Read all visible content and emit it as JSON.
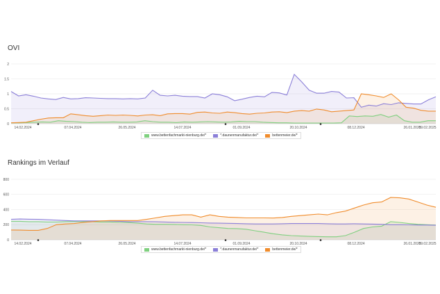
{
  "sections": [
    {
      "title": "OVI"
    },
    {
      "title": "Rankings im Verlauf"
    }
  ],
  "series_meta": [
    {
      "name": "www.bettenfachmarkt-nienburg.de/*",
      "color": "#7fd07f"
    },
    {
      "name": "*.daunenmanufaktur.de/*",
      "color": "#8b7fd8"
    },
    {
      "name": "bettenmeier.de/*",
      "color": "#f08c2c"
    }
  ],
  "chart_data": [
    {
      "type": "area",
      "title": "OVI",
      "x_ticks": [
        "14.02.2024",
        "07.04.2024",
        "26.05.2024",
        "14.07.2024",
        "01.09.2024",
        "20.10.2024",
        "08.12.2024",
        "26.01.2025",
        "09.02.2025"
      ],
      "y_ticks": [
        "0",
        "0.5",
        "1",
        "1.5",
        "2"
      ],
      "ylim": [
        0,
        2
      ],
      "grid": true,
      "legend": "bottom",
      "series": [
        {
          "name": "www.bettenfachmarkt-nienburg.de/*",
          "values": [
            0.03,
            0.03,
            0.04,
            0.05,
            0.06,
            0.05,
            0.1,
            0.08,
            0.07,
            0.05,
            0.04,
            0.05,
            0.05,
            0.06,
            0.05,
            0.05,
            0.06,
            0.1,
            0.07,
            0.05,
            0.05,
            0.04,
            0.06,
            0.05,
            0.06,
            0.07,
            0.06,
            0.05,
            0.06,
            0.08,
            0.07,
            0.07,
            0.05,
            0.04,
            0.03,
            0.03,
            0.02,
            0.02,
            0.02,
            0.02,
            0.02,
            0.02,
            0.03,
            0.26,
            0.24,
            0.26,
            0.25,
            0.31,
            0.22,
            0.29,
            0.1,
            0.05,
            0.05,
            0.1,
            0.1
          ]
        },
        {
          "name": "*.daunenmanufaktur.de/*",
          "values": [
            1.08,
            0.93,
            0.97,
            0.92,
            0.86,
            0.83,
            0.81,
            0.88,
            0.83,
            0.84,
            0.87,
            0.86,
            0.85,
            0.84,
            0.84,
            0.83,
            0.84,
            0.83,
            0.86,
            1.12,
            0.95,
            0.93,
            0.95,
            0.92,
            0.91,
            0.91,
            0.86,
            1.0,
            0.97,
            0.9,
            0.77,
            0.82,
            0.88,
            0.92,
            0.9,
            1.05,
            1.03,
            0.96,
            1.65,
            1.4,
            1.12,
            1.02,
            1.02,
            1.08,
            1.06,
            0.86,
            0.87,
            0.55,
            0.62,
            0.59,
            0.67,
            0.64,
            0.7,
            0.68,
            0.66,
            0.66,
            0.8,
            0.9
          ]
        },
        {
          "name": "bettenmeier.de/*",
          "values": [
            0.03,
            0.04,
            0.05,
            0.1,
            0.15,
            0.19,
            0.2,
            0.2,
            0.33,
            0.3,
            0.27,
            0.25,
            0.27,
            0.29,
            0.28,
            0.29,
            0.28,
            0.26,
            0.29,
            0.3,
            0.27,
            0.33,
            0.34,
            0.34,
            0.32,
            0.38,
            0.39,
            0.36,
            0.35,
            0.39,
            0.37,
            0.34,
            0.32,
            0.35,
            0.36,
            0.39,
            0.4,
            0.37,
            0.42,
            0.44,
            0.42,
            0.49,
            0.46,
            0.4,
            0.42,
            0.44,
            0.46,
            1.0,
            0.97,
            0.93,
            0.88,
            1.0,
            0.8,
            0.55,
            0.52,
            0.45,
            0.42,
            0.42
          ]
        }
      ]
    },
    {
      "type": "area",
      "title": "Rankings im Verlauf",
      "x_ticks": [
        "14.02.2024",
        "07.04.2024",
        "26.05.2024",
        "14.07.2024",
        "01.09.2024",
        "20.10.2024",
        "08.12.2024",
        "26.01.2025",
        "09.02.2025"
      ],
      "y_ticks": [
        "0",
        "200",
        "400",
        "600",
        "800"
      ],
      "ylim": [
        0,
        800
      ],
      "grid": true,
      "legend": "bottom",
      "series": [
        {
          "name": "www.bettenfachmarkt-nienburg.de/*",
          "values": [
            245,
            245,
            240,
            240,
            235,
            235,
            240,
            242,
            240,
            240,
            235,
            235,
            230,
            228,
            220,
            210,
            205,
            205,
            203,
            200,
            198,
            190,
            170,
            160,
            150,
            148,
            140,
            120,
            100,
            80,
            65,
            55,
            50,
            45,
            42,
            40,
            40,
            55,
            100,
            150,
            170,
            180,
            240,
            230,
            215,
            205,
            200,
            195
          ]
        },
        {
          "name": "*.daunenmanufaktur.de/*",
          "values": [
            270,
            275,
            272,
            270,
            265,
            260,
            255,
            250,
            250,
            250,
            250,
            248,
            245,
            240,
            240,
            240,
            238,
            235,
            232,
            230,
            228,
            225,
            222,
            220,
            218,
            215,
            212,
            210,
            210,
            210,
            212,
            215,
            215,
            215,
            215,
            212,
            210,
            210,
            212,
            210,
            208,
            205,
            200,
            200,
            198,
            195,
            195,
            192
          ]
        },
        {
          "name": "bettenmeier.de/*",
          "values": [
            130,
            128,
            125,
            125,
            150,
            200,
            210,
            215,
            230,
            240,
            250,
            255,
            255,
            255,
            255,
            270,
            290,
            310,
            320,
            330,
            330,
            300,
            330,
            310,
            300,
            295,
            290,
            290,
            290,
            288,
            295,
            310,
            320,
            330,
            340,
            330,
            360,
            380,
            420,
            460,
            490,
            500,
            560,
            555,
            540,
            500,
            460,
            430
          ]
        }
      ]
    }
  ]
}
